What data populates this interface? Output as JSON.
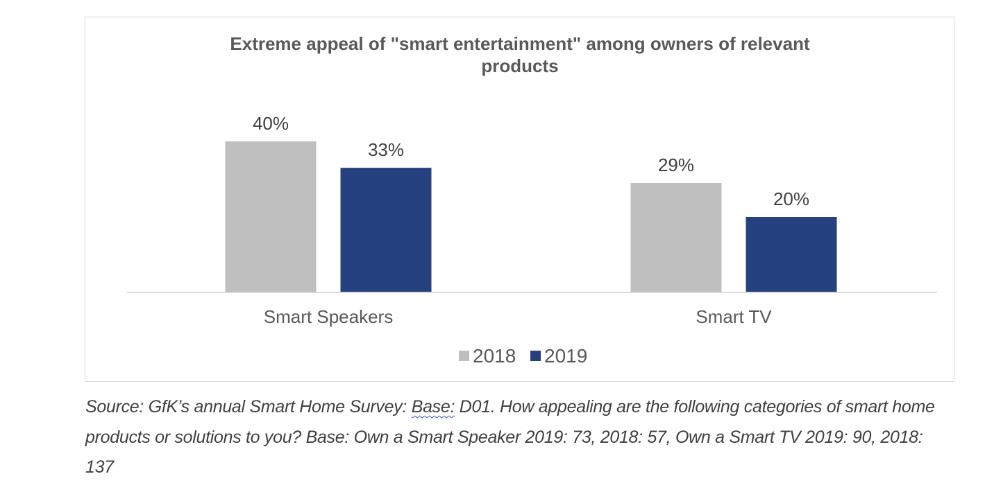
{
  "chart_data": {
    "type": "bar",
    "title": "Extreme appeal of \"smart entertainment\" among owners of relevant products",
    "title_lines": [
      "Extreme appeal of \"smart entertainment\" among owners of relevant",
      "products"
    ],
    "categories": [
      "Smart Speakers",
      "Smart TV"
    ],
    "series": [
      {
        "name": "2018",
        "color": "#bfbfbf",
        "values": [
          40,
          29
        ],
        "labels": [
          "40%",
          "29%"
        ]
      },
      {
        "name": "2019",
        "color": "#254180",
        "values": [
          33,
          20
        ],
        "labels": [
          "33%",
          "20%"
        ]
      }
    ],
    "xlabel": "",
    "ylabel": "",
    "ylim": [
      0,
      40
    ],
    "unit": "%",
    "grid": false,
    "y_axis_visible": false,
    "data_labels": true,
    "legend": {
      "position": "bottom",
      "entries": [
        "2018",
        "2019"
      ]
    }
  },
  "source_note": {
    "prefix": "Source: GfK’s annual Smart Home Survey: ",
    "flagged_word": "Base:",
    "suffix": " D01. How appealing are the following categories of smart home products or solutions to you? Base: Own a Smart Speaker 2019: 73, 2018: 57, Own a Smart TV 2019: 90, 2018: 137"
  }
}
